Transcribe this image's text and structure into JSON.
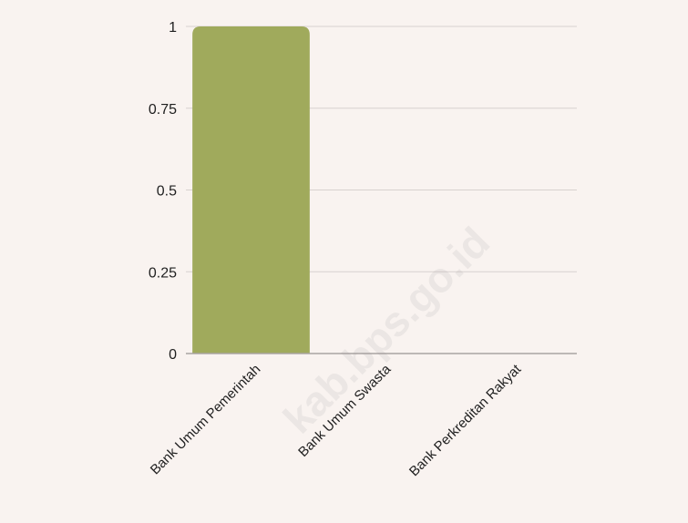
{
  "colors": {
    "background": "#f9f3f0",
    "bar": "#a0aa5c",
    "gridline": "#d8d2cf",
    "axis": "#a9a4a2",
    "text": "#1f1f1f"
  },
  "watermark": "kab.bps.go.id",
  "chart_data": {
    "type": "bar",
    "title": "",
    "xlabel": "",
    "ylabel": "",
    "categories": [
      "Bank Umum Pemerintah",
      "Bank Umum Swasta",
      "Bank Perkreditan Rakyat"
    ],
    "values": [
      1,
      0,
      0
    ],
    "ylim": [
      0,
      1
    ],
    "yticks": [
      0,
      0.25,
      0.5,
      0.75,
      1
    ],
    "ytick_labels": [
      "0",
      "0.25",
      "0.5",
      "0.75",
      "1"
    ],
    "grid": true,
    "legend": "none"
  }
}
